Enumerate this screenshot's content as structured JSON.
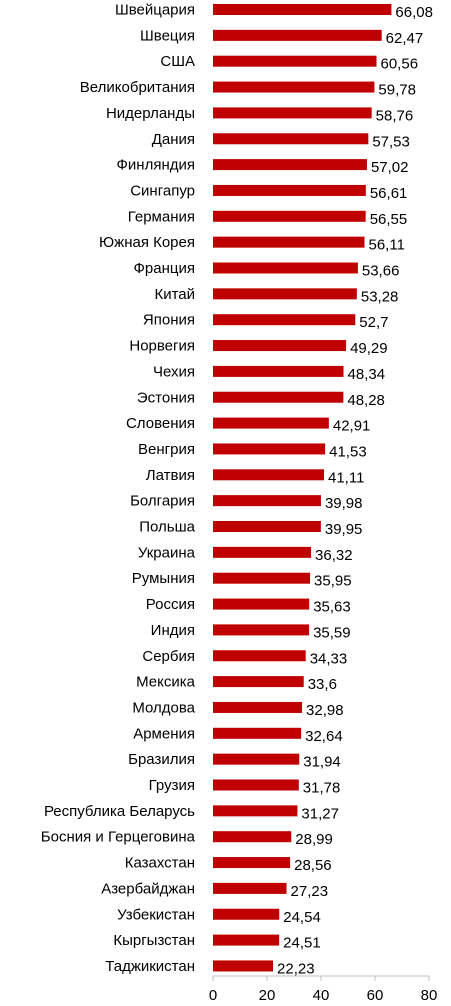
{
  "chart_data": {
    "type": "bar",
    "orientation": "horizontal",
    "title": "",
    "xlabel": "",
    "ylabel": "",
    "xlim": [
      0,
      80
    ],
    "x_ticks": [
      "0",
      "20",
      "40",
      "60",
      "80"
    ],
    "grid": false,
    "legend": "none",
    "bar_color": "#c00000",
    "categories": [
      "Швейцария",
      "Швеция",
      "США",
      "Великобритания",
      "Нидерланды",
      "Дания",
      "Финляндия",
      "Сингапур",
      "Германия",
      "Южная Корея",
      "Франция",
      "Китай",
      "Япония",
      "Норвегия",
      "Чехия",
      "Эстония",
      "Словения",
      "Венгрия",
      "Латвия",
      "Болгария",
      "Польша",
      "Украина",
      "Румыния",
      "Россия",
      "Индия",
      "Сербия",
      "Мексика",
      "Молдова",
      "Армения",
      "Бразилия",
      "Грузия",
      "Республика Беларусь",
      "Босния и Герцеговина",
      "Казахстан",
      "Азербайджан",
      "Узбекистан",
      "Кыргызстан",
      "Таджикистан"
    ],
    "values": [
      66.08,
      62.47,
      60.56,
      59.78,
      58.76,
      57.53,
      57.02,
      56.61,
      56.55,
      56.11,
      53.66,
      53.28,
      52.7,
      49.29,
      48.34,
      48.28,
      42.91,
      41.53,
      41.11,
      39.98,
      39.95,
      36.32,
      35.95,
      35.63,
      35.59,
      34.33,
      33.6,
      32.98,
      32.64,
      31.94,
      31.78,
      31.27,
      28.99,
      28.56,
      27.23,
      24.54,
      24.51,
      22.23
    ],
    "data_labels": [
      "66,08",
      "62,47",
      "60,56",
      "59,78",
      "58,76",
      "57,53",
      "57,02",
      "56,61",
      "56,55",
      "56,11",
      "53,66",
      "53,28",
      "52,7",
      "49,29",
      "48,34",
      "48,28",
      "42,91",
      "41,53",
      "41,11",
      "39,98",
      "39,95",
      "36,32",
      "35,95",
      "35,63",
      "35,59",
      "34,33",
      "33,6",
      "32,98",
      "32,64",
      "31,94",
      "31,78",
      "31,27",
      "28,99",
      "28,56",
      "27,23",
      "24,54",
      "24,51",
      "22,23"
    ]
  }
}
